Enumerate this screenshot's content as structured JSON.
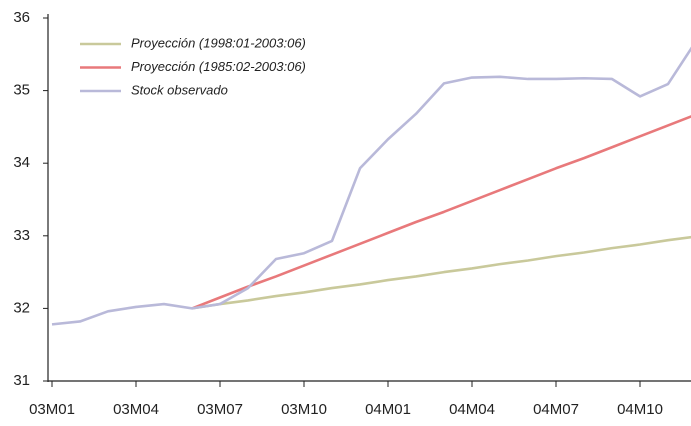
{
  "chart_data": {
    "type": "line",
    "categories": [
      "03M01",
      null,
      null,
      "03M04",
      null,
      null,
      "03M07",
      null,
      null,
      "03M10",
      null,
      null,
      "04M01",
      null,
      null,
      "04M04",
      null,
      null,
      "04M07",
      null,
      null,
      "04M10",
      null,
      null
    ],
    "series": [
      {
        "name": "Proyección (1998:01-2003:06)",
        "color": "#c9c99b",
        "values": [
          null,
          null,
          null,
          null,
          null,
          32.0,
          32.06,
          32.11,
          32.17,
          32.22,
          32.28,
          32.33,
          32.39,
          32.44,
          32.5,
          32.55,
          32.61,
          32.66,
          32.72,
          32.77,
          32.83,
          32.88,
          32.94,
          32.99
        ]
      },
      {
        "name": "Proyección (1985:02-2003:06)",
        "color": "#e8797b",
        "values": [
          null,
          null,
          null,
          null,
          null,
          32.0,
          32.15,
          32.3,
          32.44,
          32.59,
          32.74,
          32.89,
          33.04,
          33.19,
          33.33,
          33.48,
          33.63,
          33.78,
          33.93,
          34.07,
          34.22,
          34.37,
          34.52,
          34.67
        ]
      },
      {
        "name": "Stock observado",
        "color": "#b9b9d9",
        "values": [
          31.78,
          31.82,
          31.96,
          32.02,
          32.06,
          32.0,
          32.06,
          32.28,
          32.68,
          32.76,
          32.93,
          33.93,
          34.33,
          34.68,
          35.1,
          35.18,
          35.19,
          35.16,
          35.16,
          35.17,
          35.16,
          34.92,
          35.09,
          35.68
        ]
      }
    ],
    "ylim": [
      31,
      36
    ],
    "yticks": [
      31,
      32,
      33,
      34,
      35,
      36
    ],
    "legend": "upper left"
  }
}
